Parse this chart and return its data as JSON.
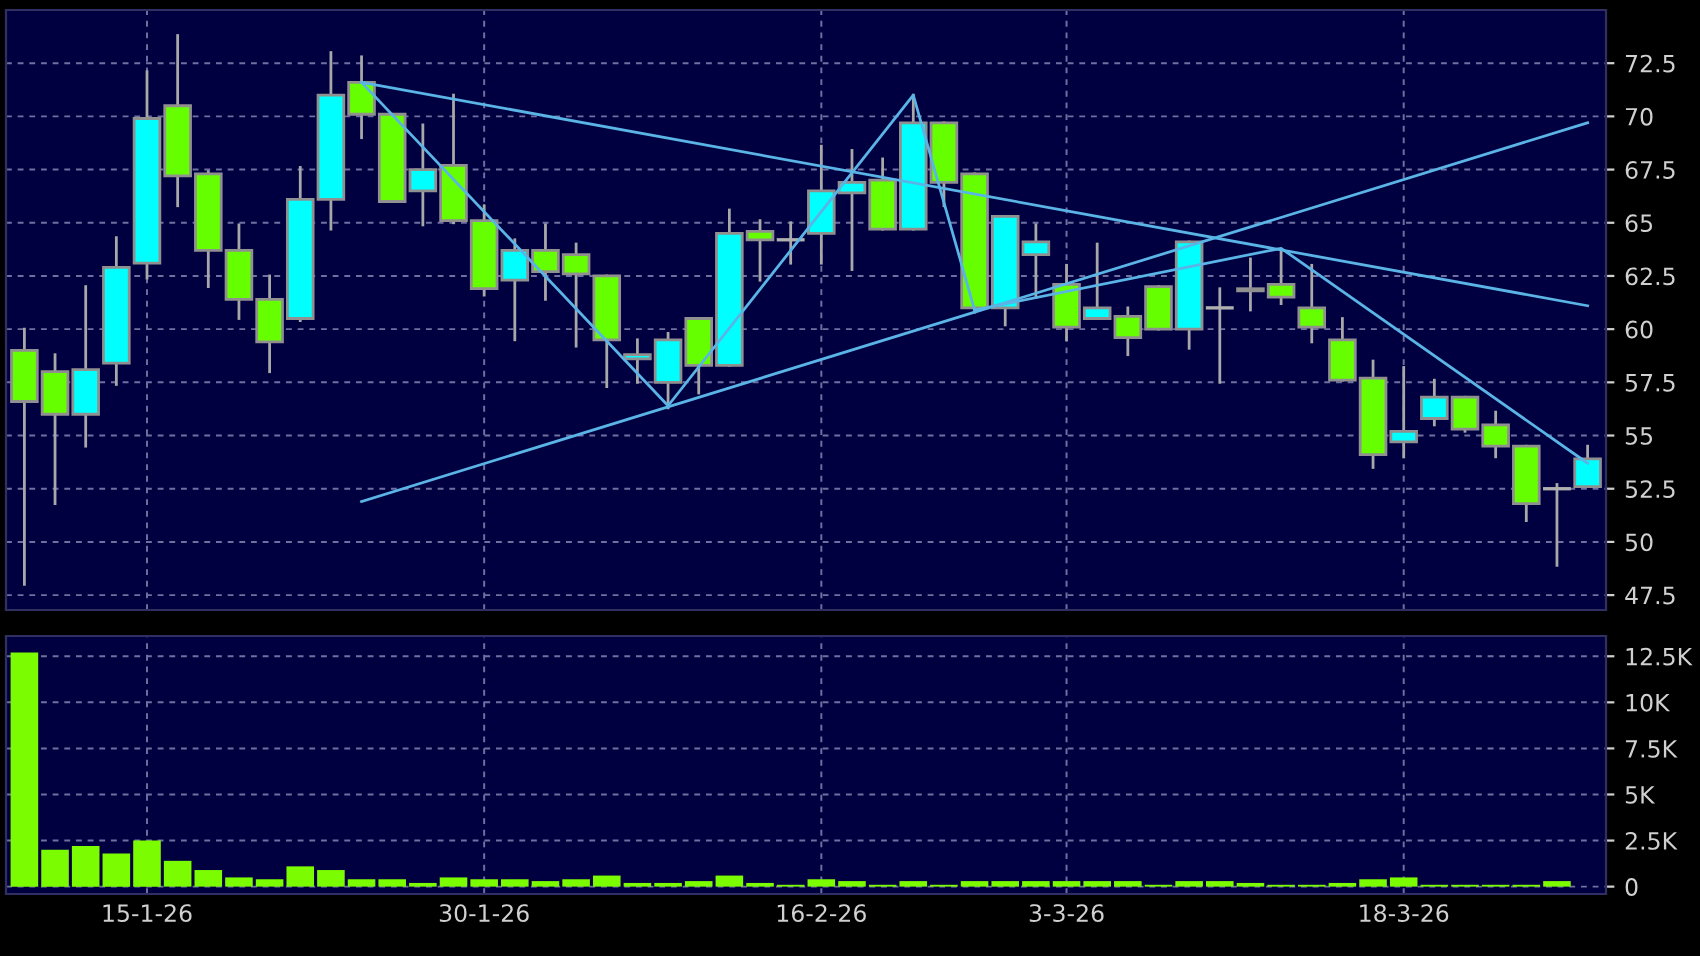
{
  "chart_data": [
    {
      "type": "candlestick",
      "categories": [
        null,
        null,
        null,
        null,
        null,
        null,
        null,
        null,
        null,
        null,
        null,
        null,
        null,
        null,
        null,
        null,
        null,
        null,
        null,
        null,
        null,
        null,
        null,
        null,
        null,
        null,
        null,
        null,
        null,
        null,
        null,
        null,
        null,
        null,
        null,
        null,
        null,
        null,
        null,
        null,
        null,
        null,
        null,
        null,
        null,
        null,
        null,
        null,
        null,
        null,
        null,
        null
      ],
      "ohlc": [
        [
          59.0,
          60.0,
          48.0,
          56.6
        ],
        [
          58.0,
          58.8,
          51.8,
          56.0
        ],
        [
          56.0,
          62.0,
          54.5,
          58.1
        ],
        [
          58.4,
          64.3,
          57.4,
          62.9
        ],
        [
          63.1,
          72.1,
          62.4,
          69.9
        ],
        [
          70.5,
          73.8,
          65.8,
          67.2
        ],
        [
          67.3,
          67.4,
          62.0,
          63.7
        ],
        [
          63.7,
          64.9,
          60.5,
          61.4
        ],
        [
          61.4,
          62.5,
          58.0,
          59.4
        ],
        [
          60.5,
          67.6,
          60.4,
          66.1
        ],
        [
          66.1,
          73.0,
          64.7,
          71.0
        ],
        [
          71.6,
          72.8,
          69.0,
          70.1
        ],
        [
          70.1,
          70.1,
          66.0,
          66.0
        ],
        [
          66.5,
          69.6,
          64.9,
          67.5
        ],
        [
          67.7,
          71.0,
          65.0,
          65.1
        ],
        [
          65.1,
          65.8,
          61.6,
          61.9
        ],
        [
          62.3,
          64.2,
          59.5,
          63.7
        ],
        [
          63.7,
          64.9,
          61.4,
          62.7
        ],
        [
          63.5,
          64.0,
          59.2,
          62.6
        ],
        [
          62.5,
          62.5,
          57.3,
          59.5
        ],
        [
          58.6,
          59.5,
          57.5,
          58.8
        ],
        [
          57.5,
          59.8,
          56.3,
          59.5
        ],
        [
          60.5,
          60.5,
          57.0,
          58.3
        ],
        [
          58.3,
          65.6,
          58.3,
          64.5
        ],
        [
          64.6,
          65.1,
          62.3,
          64.2
        ],
        [
          64.2,
          65.0,
          63.1,
          64.2
        ],
        [
          64.5,
          68.6,
          63.1,
          66.5
        ],
        [
          66.4,
          68.4,
          62.8,
          66.9
        ],
        [
          67.0,
          68.0,
          64.7,
          64.7
        ],
        [
          64.7,
          71.0,
          64.7,
          69.7
        ],
        [
          69.7,
          69.7,
          65.8,
          66.9
        ],
        [
          67.3,
          67.3,
          60.8,
          61.0
        ],
        [
          61.0,
          65.3,
          60.2,
          65.3
        ],
        [
          63.5,
          64.9,
          61.5,
          64.1
        ],
        [
          62.1,
          63.0,
          59.5,
          60.1
        ],
        [
          60.5,
          64.0,
          60.5,
          61.0
        ],
        [
          60.6,
          61.0,
          58.8,
          59.6
        ],
        [
          62.0,
          62.0,
          60.0,
          60.0
        ],
        [
          60.0,
          64.1,
          59.1,
          64.1
        ],
        [
          61.0,
          61.9,
          57.5,
          61.0
        ],
        [
          61.9,
          63.3,
          60.9,
          61.8
        ],
        [
          62.1,
          63.7,
          61.2,
          61.5
        ],
        [
          61.0,
          63.0,
          59.4,
          60.1
        ],
        [
          59.5,
          60.5,
          57.6,
          57.6
        ],
        [
          57.7,
          58.5,
          53.5,
          54.1
        ],
        [
          54.7,
          58.2,
          54.0,
          55.2
        ],
        [
          55.8,
          57.6,
          55.5,
          56.8
        ],
        [
          56.8,
          56.8,
          55.2,
          55.3
        ],
        [
          55.5,
          56.1,
          54.0,
          54.5
        ],
        [
          54.5,
          54.5,
          51.0,
          51.8
        ],
        [
          52.5,
          52.7,
          48.9,
          52.5
        ],
        [
          52.6,
          54.5,
          52.6,
          53.9
        ]
      ],
      "colors": [
        "#66ff00",
        "#66ff00",
        "#00ffff",
        "#00ffff",
        "#00ffff",
        "#66ff00",
        "#66ff00",
        "#66ff00",
        "#66ff00",
        "#00ffff",
        "#00ffff",
        "#66ff00",
        "#66ff00",
        "#00ffff",
        "#66ff00",
        "#66ff00",
        "#00ffff",
        "#66ff00",
        "#66ff00",
        "#66ff00",
        "#00ffff",
        "#00ffff",
        "#66ff00",
        "#00ffff",
        "#66ff00",
        "#b0b0b0",
        "#00ffff",
        "#00ffff",
        "#66ff00",
        "#00ffff",
        "#66ff00",
        "#66ff00",
        "#00ffff",
        "#00ffff",
        "#66ff00",
        "#00ffff",
        "#66ff00",
        "#66ff00",
        "#00ffff",
        "#b0b0b0",
        "#66ff00",
        "#66ff00",
        "#66ff00",
        "#66ff00",
        "#66ff00",
        "#00ffff",
        "#00ffff",
        "#66ff00",
        "#66ff00",
        "#66ff00",
        "#b0b0b0",
        "#00ffff"
      ],
      "series": [
        {
          "type": "line",
          "values": [
            null,
            null,
            null,
            null,
            null,
            null,
            null,
            null,
            null,
            null,
            null,
            71.6,
            null,
            null,
            null,
            null,
            null,
            null,
            null,
            null,
            null,
            null,
            null,
            null,
            null,
            null,
            null,
            null,
            null,
            null,
            null,
            null,
            null,
            null,
            null,
            null,
            null,
            null,
            null,
            null,
            null,
            null,
            null,
            null,
            null,
            null,
            null,
            null,
            null,
            null,
            null,
            61.1
          ],
          "color": "#5ab4e6"
        },
        {
          "type": "line",
          "values": [
            null,
            null,
            null,
            null,
            null,
            null,
            null,
            null,
            null,
            null,
            null,
            51.9,
            null,
            null,
            null,
            null,
            null,
            null,
            null,
            null,
            null,
            null,
            null,
            null,
            null,
            null,
            null,
            null,
            null,
            null,
            null,
            null,
            null,
            null,
            null,
            null,
            null,
            null,
            null,
            null,
            null,
            null,
            null,
            null,
            null,
            null,
            null,
            null,
            null,
            null,
            null,
            69.7
          ],
          "color": "#5ab4e6"
        },
        {
          "type": "line",
          "values": [
            null,
            null,
            null,
            null,
            null,
            null,
            null,
            null,
            null,
            null,
            null,
            71.6,
            null,
            null,
            null,
            null,
            null,
            null,
            null,
            null,
            null,
            56.4,
            null,
            null,
            null,
            null,
            null,
            null,
            null,
            71.0,
            null,
            60.9,
            null,
            null,
            null,
            null,
            null,
            null,
            null,
            null,
            null,
            63.8,
            null,
            null,
            null,
            null,
            null,
            null,
            null,
            null,
            null,
            53.7
          ],
          "color": "#5ab4e6"
        }
      ],
      "ylim": [
        46.8,
        75
      ],
      "yticks": [
        47.5,
        50,
        52.5,
        55,
        57.5,
        60,
        62.5,
        65,
        67.5,
        70,
        72.5
      ],
      "grid": true,
      "tick_labels": "y"
    },
    {
      "type": "bar",
      "categories": [
        null,
        null,
        null,
        null,
        "15-1-26",
        null,
        null,
        null,
        null,
        null,
        null,
        null,
        null,
        null,
        null,
        "30-1-26",
        null,
        null,
        null,
        null,
        null,
        null,
        null,
        null,
        null,
        null,
        "16-2-26",
        null,
        null,
        null,
        null,
        null,
        null,
        null,
        "3-3-26",
        null,
        null,
        null,
        null,
        null,
        null,
        null,
        null,
        null,
        null,
        "18-3-26",
        null,
        null,
        null,
        null,
        null,
        null
      ],
      "values": [
        12700,
        2000,
        2200,
        1800,
        2500,
        1400,
        900,
        500,
        400,
        1100,
        900,
        400,
        400,
        200,
        500,
        400,
        400,
        300,
        400,
        600,
        200,
        200,
        300,
        600,
        200,
        100,
        400,
        300,
        100,
        300,
        100,
        300,
        300,
        300,
        300,
        300,
        300,
        100,
        300,
        300,
        200,
        100,
        100,
        200,
        400,
        500,
        100,
        100,
        100,
        100,
        300,
        0
      ],
      "color": "#7cfc00",
      "ylim": [
        -400,
        13600
      ],
      "yticks": [
        0,
        {
          "value": 2500,
          "label": "2.5K"
        },
        {
          "value": 5000,
          "label": "5K"
        },
        {
          "value": 7500,
          "label": "7.5K"
        },
        {
          "value": 10000,
          "label": "10K"
        },
        {
          "value": 12500,
          "label": "12.5K"
        }
      ],
      "grid": true
    }
  ]
}
